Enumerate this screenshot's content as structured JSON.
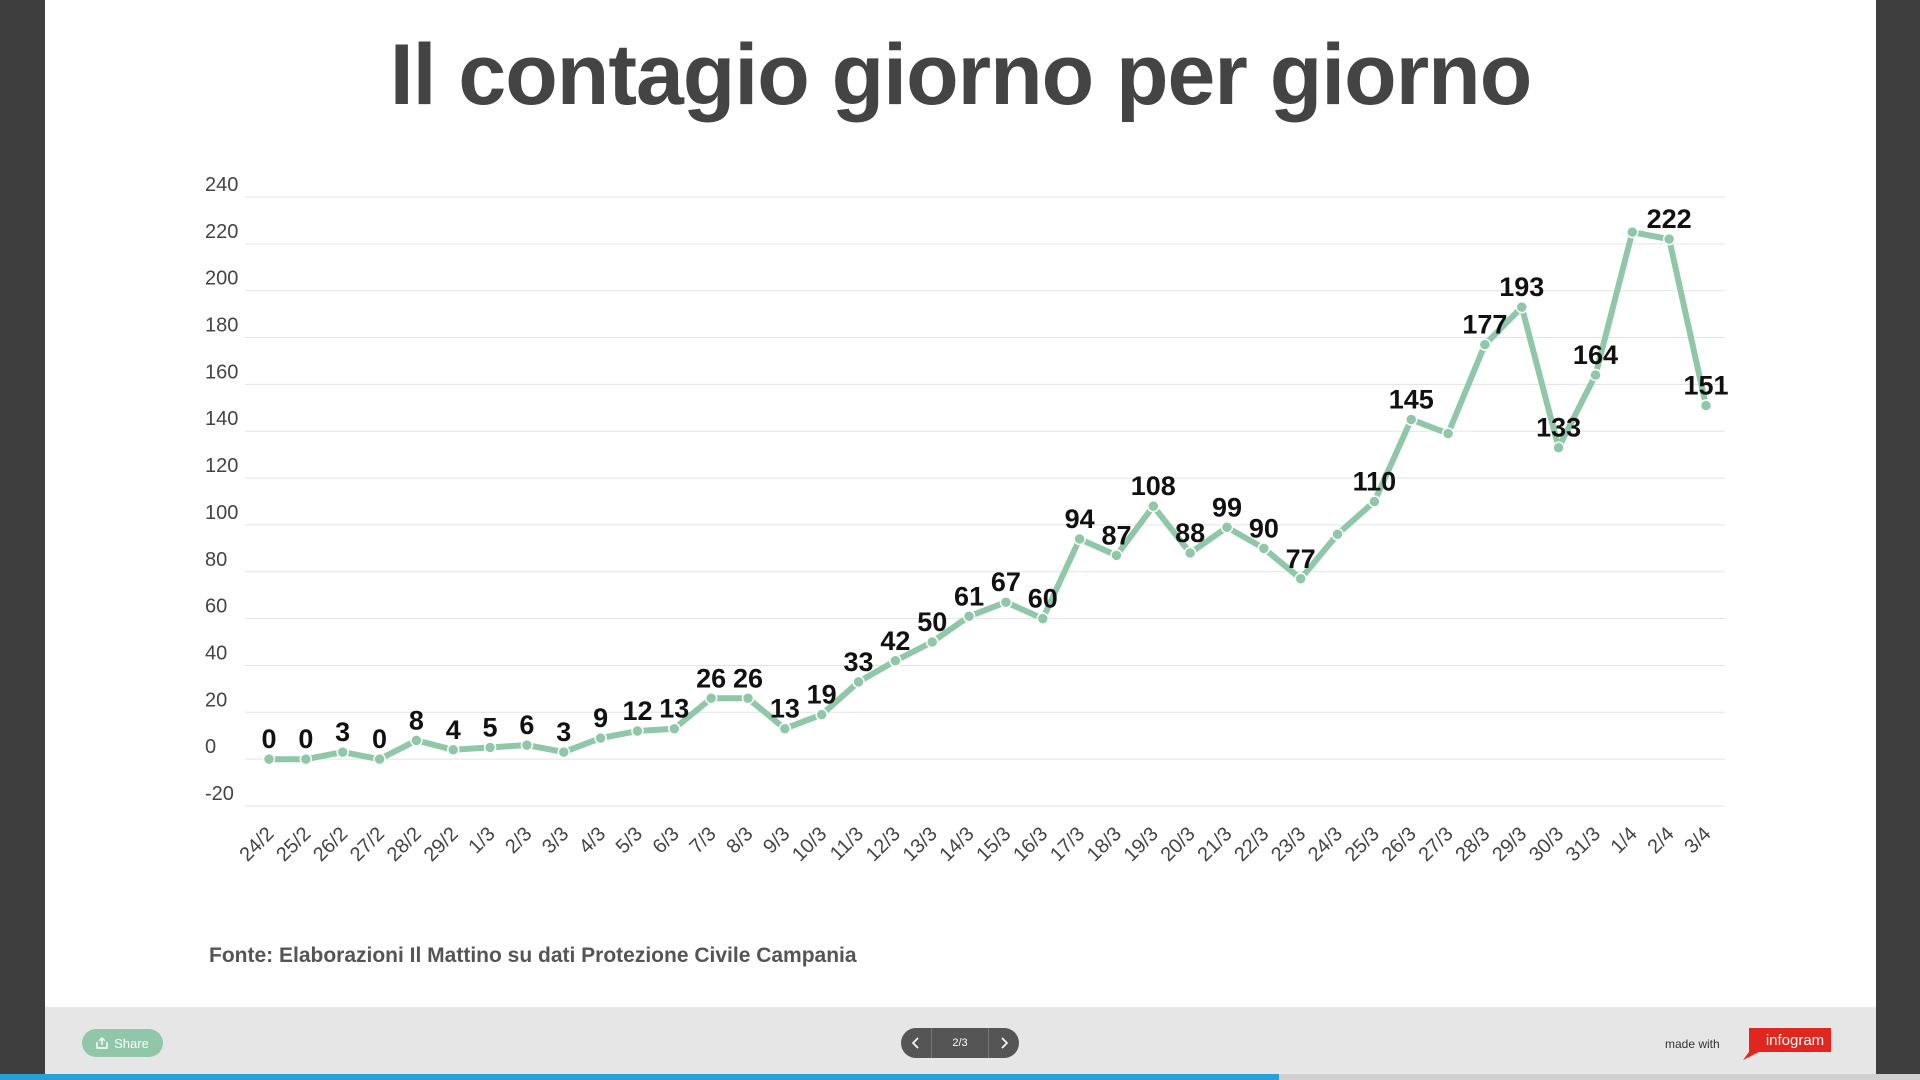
{
  "title": "Il contagio giorno per giorno",
  "source": "Fonte: Elaborazioni Il Mattino su dati Protezione Civile Campania",
  "footer": {
    "share_label": "Share",
    "pager_label": "2/3",
    "made_with": "made with",
    "brand": "infogram"
  },
  "progress": {
    "fraction": 0.666
  },
  "colors": {
    "line": "#8fc7a8",
    "grid": "#e3e3e3",
    "tick": "#444444",
    "label": "#111111"
  },
  "chart_data": {
    "type": "line",
    "title": "",
    "xlabel": "",
    "ylabel": "",
    "ylim": [
      -20,
      240
    ],
    "yticks": [
      -20,
      0,
      20,
      40,
      60,
      80,
      100,
      120,
      140,
      160,
      180,
      200,
      220,
      240
    ],
    "grid": true,
    "categories": [
      "24/2",
      "25/2",
      "26/2",
      "27/2",
      "28/2",
      "29/2",
      "1/3",
      "2/3",
      "3/3",
      "4/3",
      "5/3",
      "6/3",
      "7/3",
      "8/3",
      "9/3",
      "10/3",
      "11/3",
      "12/3",
      "13/3",
      "14/3",
      "15/3",
      "16/3",
      "17/3",
      "18/3",
      "19/3",
      "20/3",
      "21/3",
      "22/3",
      "23/3",
      "24/3",
      "25/3",
      "26/3",
      "27/3",
      "28/3",
      "29/3",
      "30/3",
      "31/3",
      "1/4",
      "2/4",
      "3/4"
    ],
    "series": [
      {
        "values": [
          0,
          0,
          3,
          0,
          8,
          4,
          5,
          6,
          3,
          9,
          12,
          13,
          26,
          26,
          13,
          19,
          33,
          42,
          50,
          61,
          67,
          60,
          94,
          87,
          108,
          88,
          99,
          90,
          77,
          96,
          110,
          145,
          139,
          177,
          193,
          133,
          164,
          225,
          222,
          151
        ],
        "data_labels": [
          "0",
          "0",
          "3",
          "0",
          "8",
          "4",
          "5",
          "6",
          "3",
          "9",
          "12",
          "13",
          "26",
          "26",
          "13",
          "19",
          "33",
          "42",
          "50",
          "61",
          "67",
          "60",
          "94",
          "87",
          "108",
          "88",
          "99",
          "90",
          "77",
          "",
          "110",
          "145",
          "",
          "177",
          "193",
          "133",
          "164",
          "",
          "222",
          "151"
        ]
      }
    ]
  }
}
